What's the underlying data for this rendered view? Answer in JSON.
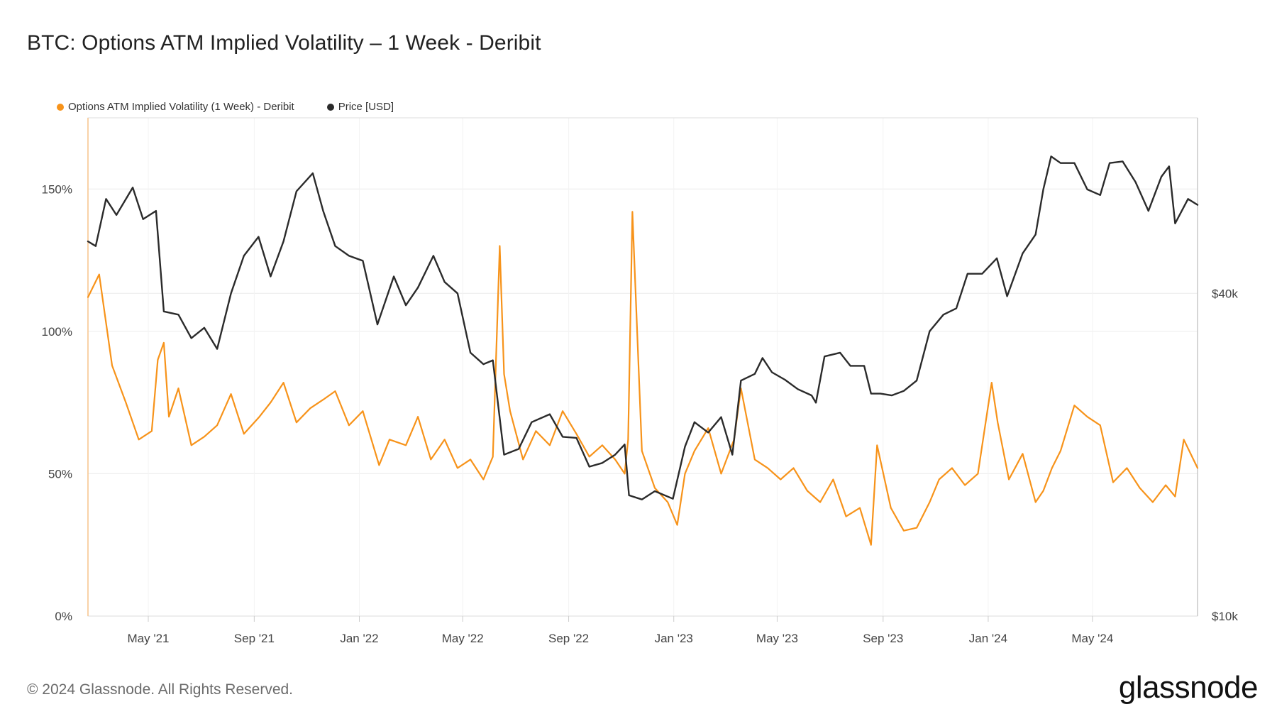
{
  "title": "BTC: Options ATM Implied Volatility – 1 Week - Deribit",
  "footer": {
    "copyright": "© 2024 Glassnode. All Rights Reserved.",
    "brand": "glassnode"
  },
  "colors": {
    "iv": "#f7931a",
    "price": "#2b2b2b",
    "grid": "#ececec",
    "axis": "#d8d8d8"
  },
  "chart_data": {
    "type": "line",
    "title": "BTC: Options ATM Implied Volatility – 1 Week - Deribit",
    "legend": [
      "Options ATM Implied Volatility (1 Week) - Deribit",
      "Price [USD]"
    ],
    "legend_position": "top-left",
    "grid": true,
    "x_range": [
      "2021-02-20",
      "2024-08-31"
    ],
    "x_ticks": [
      "May '21",
      "Sep '21",
      "Jan '22",
      "May '22",
      "Sep '22",
      "Jan '23",
      "May '23",
      "Sep '23",
      "Jan '24",
      "May '24"
    ],
    "x_tick_dates": [
      "2021-05-01",
      "2021-09-01",
      "2022-01-01",
      "2022-05-01",
      "2022-09-01",
      "2023-01-01",
      "2023-05-01",
      "2023-09-01",
      "2024-01-01",
      "2024-05-01"
    ],
    "y_left": {
      "ticks": [
        0,
        50,
        100,
        150
      ],
      "tick_labels": [
        "0%",
        "50%",
        "100%",
        "150%"
      ],
      "range": [
        0,
        175
      ],
      "unit": "%"
    },
    "y_right": {
      "scale": "log",
      "ticks": [
        10000,
        40000
      ],
      "tick_labels": [
        "$10k",
        "$40k"
      ],
      "range": [
        10000,
        85000
      ]
    },
    "series": [
      {
        "name": "Options ATM Implied Volatility (1 Week) - Deribit",
        "axis": "left",
        "color": "#f7931a",
        "x": [
          "2021-02-20",
          "2021-03-05",
          "2021-03-20",
          "2021-04-05",
          "2021-04-20",
          "2021-05-05",
          "2021-05-12",
          "2021-05-19",
          "2021-05-25",
          "2021-06-05",
          "2021-06-20",
          "2021-07-05",
          "2021-07-20",
          "2021-08-05",
          "2021-08-20",
          "2021-09-07",
          "2021-09-20",
          "2021-10-05",
          "2021-10-20",
          "2021-11-05",
          "2021-11-20",
          "2021-12-04",
          "2021-12-20",
          "2022-01-05",
          "2022-01-24",
          "2022-02-05",
          "2022-02-24",
          "2022-03-10",
          "2022-03-25",
          "2022-04-10",
          "2022-04-25",
          "2022-05-10",
          "2022-05-25",
          "2022-06-05",
          "2022-06-13",
          "2022-06-18",
          "2022-06-25",
          "2022-07-10",
          "2022-07-25",
          "2022-08-10",
          "2022-08-25",
          "2022-09-10",
          "2022-09-25",
          "2022-10-10",
          "2022-10-25",
          "2022-11-05",
          "2022-11-09",
          "2022-11-14",
          "2022-11-25",
          "2022-12-10",
          "2022-12-25",
          "2023-01-05",
          "2023-01-14",
          "2023-01-25",
          "2023-02-10",
          "2023-02-25",
          "2023-03-12",
          "2023-03-20",
          "2023-04-05",
          "2023-04-20",
          "2023-05-05",
          "2023-05-20",
          "2023-06-05",
          "2023-06-20",
          "2023-07-05",
          "2023-07-20",
          "2023-08-05",
          "2023-08-18",
          "2023-08-25",
          "2023-09-10",
          "2023-09-25",
          "2023-10-10",
          "2023-10-25",
          "2023-11-05",
          "2023-11-20",
          "2023-12-05",
          "2023-12-20",
          "2024-01-05",
          "2024-01-12",
          "2024-01-25",
          "2024-02-10",
          "2024-02-25",
          "2024-03-05",
          "2024-03-15",
          "2024-03-25",
          "2024-04-10",
          "2024-04-25",
          "2024-05-10",
          "2024-05-25",
          "2024-06-10",
          "2024-06-25",
          "2024-07-10",
          "2024-07-25",
          "2024-08-05",
          "2024-08-15",
          "2024-08-31"
        ],
        "y": [
          112,
          120,
          88,
          75,
          62,
          65,
          90,
          96,
          70,
          80,
          60,
          63,
          67,
          78,
          64,
          70,
          75,
          82,
          68,
          73,
          76,
          79,
          67,
          72,
          53,
          62,
          60,
          70,
          55,
          62,
          52,
          55,
          48,
          56,
          130,
          85,
          72,
          55,
          65,
          60,
          72,
          64,
          56,
          60,
          55,
          50,
          62,
          142,
          58,
          45,
          40,
          32,
          50,
          58,
          66,
          50,
          62,
          80,
          55,
          52,
          48,
          52,
          44,
          40,
          48,
          35,
          38,
          25,
          60,
          38,
          30,
          31,
          40,
          48,
          52,
          46,
          50,
          82,
          68,
          48,
          57,
          40,
          44,
          52,
          58,
          74,
          70,
          67,
          47,
          52,
          45,
          40,
          46,
          42,
          62,
          52
        ]
      },
      {
        "name": "Price [USD]",
        "axis": "right",
        "color": "#2b2b2b",
        "x": [
          "2021-02-20",
          "2021-03-01",
          "2021-03-13",
          "2021-03-25",
          "2021-04-13",
          "2021-04-25",
          "2021-05-10",
          "2021-05-19",
          "2021-06-05",
          "2021-06-20",
          "2021-07-05",
          "2021-07-20",
          "2021-08-05",
          "2021-08-20",
          "2021-09-06",
          "2021-09-20",
          "2021-10-05",
          "2021-10-20",
          "2021-11-08",
          "2021-11-20",
          "2021-12-04",
          "2021-12-20",
          "2022-01-05",
          "2022-01-22",
          "2022-02-10",
          "2022-02-24",
          "2022-03-10",
          "2022-03-28",
          "2022-04-10",
          "2022-04-25",
          "2022-05-10",
          "2022-05-25",
          "2022-06-05",
          "2022-06-18",
          "2022-07-05",
          "2022-07-20",
          "2022-08-10",
          "2022-08-25",
          "2022-09-10",
          "2022-09-25",
          "2022-10-10",
          "2022-10-25",
          "2022-11-05",
          "2022-11-10",
          "2022-11-25",
          "2022-12-10",
          "2022-12-31",
          "2023-01-14",
          "2023-01-25",
          "2023-02-10",
          "2023-02-25",
          "2023-03-10",
          "2023-03-20",
          "2023-04-05",
          "2023-04-14",
          "2023-04-25",
          "2023-05-10",
          "2023-05-25",
          "2023-06-10",
          "2023-06-15",
          "2023-06-25",
          "2023-07-13",
          "2023-07-25",
          "2023-08-10",
          "2023-08-18",
          "2023-08-29",
          "2023-09-11",
          "2023-09-25",
          "2023-10-10",
          "2023-10-25",
          "2023-11-10",
          "2023-11-25",
          "2023-12-08",
          "2023-12-25",
          "2024-01-11",
          "2024-01-23",
          "2024-02-10",
          "2024-02-25",
          "2024-03-05",
          "2024-03-14",
          "2024-03-25",
          "2024-04-10",
          "2024-04-25",
          "2024-05-10",
          "2024-05-21",
          "2024-06-05",
          "2024-06-20",
          "2024-07-05",
          "2024-07-20",
          "2024-07-29",
          "2024-08-05",
          "2024-08-20",
          "2024-08-31"
        ],
        "y": [
          50000,
          49000,
          60000,
          56000,
          63000,
          55000,
          57000,
          37000,
          36500,
          33000,
          34500,
          31500,
          40000,
          47000,
          51000,
          43000,
          50000,
          62000,
          67000,
          57000,
          49000,
          47000,
          46000,
          35000,
          43000,
          38000,
          41000,
          47000,
          42000,
          40000,
          31000,
          29500,
          30000,
          20000,
          20500,
          23000,
          23800,
          21600,
          21500,
          19000,
          19300,
          20000,
          20900,
          16800,
          16500,
          17100,
          16550,
          20700,
          23000,
          22000,
          23500,
          20000,
          27500,
          28300,
          30300,
          28500,
          27600,
          26500,
          25800,
          25000,
          30500,
          31000,
          29300,
          29300,
          26000,
          26000,
          25800,
          26300,
          27500,
          34000,
          36500,
          37500,
          43500,
          43500,
          46500,
          39500,
          47500,
          51500,
          62500,
          72000,
          70000,
          70000,
          62500,
          61000,
          70000,
          70500,
          64500,
          57000,
          66000,
          69000,
          54000,
          60000,
          58500
        ]
      }
    ]
  }
}
